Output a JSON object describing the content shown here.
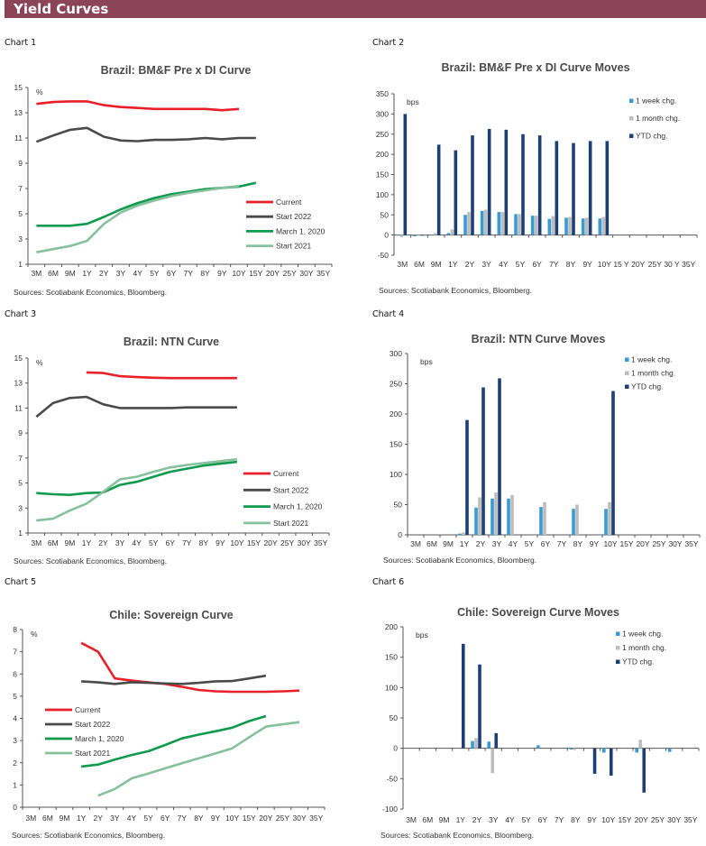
{
  "header": {
    "title": "Yield Curves",
    "color": "#8c4459"
  },
  "colors": {
    "current": "#e8202a",
    "start2022": "#4a4a4a",
    "march2020": "#119a4e",
    "start2021": "#86c09c",
    "week": "#3a9ad4",
    "month": "#bdbdbd",
    "ytd": "#1d3f75"
  },
  "chart_data": [
    {
      "label": "Chart 1",
      "type": "line",
      "title": "Brazil: BM&F Pre x DI Curve",
      "ylabel": "%",
      "sources": "Sources: Scotiabank Economics, Bloomberg.",
      "ylim": [
        1,
        15
      ],
      "yticks": [
        "1",
        "3",
        "5",
        "7",
        "9",
        "11",
        "13",
        "15"
      ],
      "categories": [
        "3M",
        "6M",
        "9M",
        "1Y",
        "2Y",
        "3Y",
        "4Y",
        "5Y",
        "6Y",
        "7Y",
        "8Y",
        "9Y",
        "10Y",
        "15Y",
        "20Y",
        "25Y",
        "30Y",
        "35Y"
      ],
      "legend": "right",
      "series": [
        {
          "name": "Current",
          "color": "#e8202a",
          "values": [
            13.7,
            13.85,
            13.9,
            13.9,
            13.6,
            13.45,
            13.38,
            13.3,
            13.3,
            13.3,
            13.3,
            13.2,
            13.3,
            null,
            null,
            null,
            null,
            null
          ]
        },
        {
          "name": "Start 2022",
          "color": "#4a4a4a",
          "values": [
            10.7,
            11.2,
            11.65,
            11.8,
            11.1,
            10.8,
            10.75,
            10.85,
            10.85,
            10.9,
            11.0,
            10.9,
            11.0,
            11.0,
            null,
            null,
            null,
            null
          ]
        },
        {
          "name": "March 1, 2020",
          "color": "#119a4e",
          "values": [
            4.05,
            4.05,
            4.05,
            4.2,
            4.75,
            5.35,
            5.85,
            6.25,
            6.55,
            6.75,
            6.95,
            7.05,
            7.15,
            7.45,
            null,
            null,
            null,
            null
          ]
        },
        {
          "name": "Start 2021",
          "color": "#86c09c",
          "values": [
            1.95,
            2.2,
            2.45,
            2.85,
            4.2,
            5.1,
            5.65,
            6.05,
            6.4,
            6.65,
            6.85,
            7.05,
            7.2,
            null,
            null,
            null,
            null,
            null
          ]
        }
      ]
    },
    {
      "label": "Chart 2",
      "type": "bar",
      "title": "Brazil: BM&F Pre x DI Curve Moves",
      "ylabel": "bps",
      "sources": "Sources: Scotiabank Economics, Bloomberg.",
      "ylim": [
        -50,
        350
      ],
      "yticks": [
        "-50",
        "0",
        "50",
        "100",
        "150",
        "200",
        "250",
        "300",
        "350"
      ],
      "categories": [
        "3M",
        "6M",
        "9M",
        "1Y",
        "2Y",
        "3Y",
        "4Y",
        "5Y",
        "6Y",
        "7Y",
        "8Y",
        "9Y",
        "10Y",
        "15 Y",
        "20Y",
        "25Y",
        "30 Y",
        "35Y"
      ],
      "legend": "top-right",
      "series": [
        {
          "name": "1 week chg.",
          "color": "#3a9ad4",
          "values": [
            0,
            -3,
            0,
            5,
            50,
            60,
            57,
            52,
            48,
            40,
            43,
            41,
            41,
            null,
            null,
            null,
            null,
            null
          ]
        },
        {
          "name": "1 month chg.",
          "color": "#bdbdbd",
          "values": [
            -5,
            -2,
            5,
            14,
            57,
            63,
            57,
            52,
            48,
            47,
            45,
            43,
            45,
            null,
            null,
            null,
            null,
            null
          ]
        },
        {
          "name": "YTD chg.",
          "color": "#1d3f75",
          "values": [
            300,
            0,
            224,
            210,
            247,
            263,
            261,
            250,
            247,
            233,
            228,
            233,
            233,
            null,
            null,
            null,
            null,
            null
          ]
        }
      ]
    },
    {
      "label": "Chart 3",
      "type": "line",
      "title": "Brazil: NTN Curve",
      "ylabel": "%",
      "sources": "Sources: Scotiabank Economics, Bloomberg.",
      "ylim": [
        1,
        15
      ],
      "yticks": [
        "1",
        "3",
        "5",
        "7",
        "9",
        "11",
        "13",
        "15"
      ],
      "categories": [
        "3M",
        "6M",
        "9M",
        "1Y",
        "2Y",
        "3Y",
        "4Y",
        "5Y",
        "6Y",
        "7Y",
        "8Y",
        "9Y",
        "10Y",
        "15Y",
        "20Y",
        "25Y",
        "30Y",
        "35Y"
      ],
      "legend": "right",
      "series": [
        {
          "name": "Current",
          "color": "#e8202a",
          "values": [
            null,
            null,
            null,
            13.85,
            13.8,
            13.55,
            13.48,
            13.43,
            13.4,
            13.4,
            13.4,
            13.4,
            13.4,
            null,
            null,
            null,
            null,
            null
          ]
        },
        {
          "name": "Start 2022",
          "color": "#4a4a4a",
          "values": [
            10.3,
            11.4,
            11.8,
            11.9,
            11.3,
            11.0,
            11.0,
            11.0,
            11.0,
            11.05,
            11.05,
            11.05,
            11.05,
            null,
            null,
            null,
            null,
            null
          ]
        },
        {
          "name": "March 1, 2020",
          "color": "#119a4e",
          "values": [
            4.2,
            4.1,
            4.05,
            4.2,
            4.25,
            4.85,
            5.1,
            5.5,
            5.9,
            6.15,
            6.4,
            6.55,
            6.7,
            null,
            null,
            null,
            null,
            null
          ]
        },
        {
          "name": "Start 2021",
          "color": "#86c09c",
          "values": [
            2.0,
            2.15,
            2.8,
            3.35,
            4.3,
            5.3,
            5.5,
            5.9,
            6.25,
            6.45,
            6.6,
            6.75,
            6.9,
            null,
            null,
            null,
            null,
            null
          ]
        }
      ]
    },
    {
      "label": "Chart 4",
      "type": "bar",
      "title": "Brazil: NTN Curve Moves",
      "ylabel": "bps",
      "sources": "Sources: Scotiabank Economics, Bloomberg.",
      "ylim": [
        0,
        300
      ],
      "yticks": [
        "0",
        "50",
        "100",
        "150",
        "200",
        "250",
        "300"
      ],
      "categories": [
        "3M",
        "6M",
        "9M",
        "1Y",
        "2Y",
        "3Y",
        "4Y",
        "5Y",
        "6Y",
        "7Y",
        "8Y",
        "9Y",
        "10Y",
        "15Y",
        "20Y",
        "25Y",
        "30Y",
        "35Y"
      ],
      "legend": "top-right",
      "series": [
        {
          "name": "1 week chg.",
          "color": "#3a9ad4",
          "values": [
            null,
            null,
            null,
            2,
            45,
            60,
            60,
            null,
            46,
            null,
            43,
            null,
            43,
            null,
            null,
            null,
            null,
            null
          ]
        },
        {
          "name": "1 month chg.",
          "color": "#bdbdbd",
          "values": [
            null,
            null,
            null,
            4,
            62,
            70,
            66,
            null,
            54,
            null,
            50,
            null,
            54,
            null,
            null,
            null,
            null,
            null
          ]
        },
        {
          "name": "YTD chg.",
          "color": "#1d3f75",
          "values": [
            null,
            null,
            null,
            190,
            244,
            259,
            null,
            null,
            null,
            null,
            null,
            null,
            238,
            null,
            null,
            null,
            null,
            null
          ]
        }
      ]
    },
    {
      "label": "Chart 5",
      "type": "line",
      "title": "Chile:  Sovereign Curve",
      "ylabel": "%",
      "sources": "Sources: Scotiabank Economics, Bloomberg.",
      "ylim": [
        0,
        8
      ],
      "yticks": [
        "0",
        "1",
        "2",
        "3",
        "4",
        "5",
        "6",
        "7",
        "8"
      ],
      "categories": [
        "3M",
        "6M",
        "9M",
        "1Y",
        "2Y",
        "3Y",
        "4Y",
        "5Y",
        "6Y",
        "7Y",
        "8Y",
        "9Y",
        "10Y",
        "15Y",
        "20Y",
        "25Y",
        "30Y",
        "35Y"
      ],
      "legend": "left",
      "series": [
        {
          "name": "Current",
          "color": "#e8202a",
          "values": [
            null,
            null,
            null,
            7.4,
            7.0,
            5.8,
            5.7,
            5.62,
            5.55,
            5.42,
            5.28,
            5.22,
            5.2,
            5.2,
            5.2,
            5.22,
            5.25,
            null
          ]
        },
        {
          "name": "Start 2022",
          "color": "#4a4a4a",
          "values": [
            null,
            null,
            null,
            5.67,
            5.62,
            5.55,
            5.63,
            5.6,
            5.57,
            5.55,
            5.6,
            5.67,
            5.68,
            5.8,
            5.92,
            null,
            null,
            null
          ]
        },
        {
          "name": "March 1, 2020",
          "color": "#119a4e",
          "values": [
            null,
            null,
            null,
            1.83,
            1.92,
            2.15,
            2.35,
            2.52,
            2.8,
            3.1,
            3.27,
            3.42,
            3.58,
            3.88,
            4.1,
            null,
            null,
            null
          ]
        },
        {
          "name": "Start 2021",
          "color": "#86c09c",
          "values": [
            null,
            null,
            null,
            null,
            0.52,
            0.82,
            1.3,
            1.52,
            1.75,
            1.98,
            2.2,
            2.42,
            2.65,
            3.15,
            3.63,
            3.73,
            3.83,
            null
          ]
        }
      ]
    },
    {
      "label": "Chart 6",
      "type": "bar",
      "title": "Chile:  Sovereign Curve Moves",
      "ylabel": "bps",
      "sources": "Sources: Scotiabank Economics, Bloomberg.",
      "ylim": [
        -100,
        200
      ],
      "yticks": [
        "-100",
        "-50",
        "0",
        "50",
        "100",
        "150",
        "200"
      ],
      "categories": [
        "3M",
        "6M",
        "9M",
        "1Y",
        "2Y",
        "3Y",
        "4Y",
        "5Y",
        "6Y",
        "7Y",
        "8Y",
        "9Y",
        "10Y",
        "15Y",
        "20Y",
        "25Y",
        "30Y",
        "35Y"
      ],
      "legend": "top-right",
      "series": [
        {
          "name": "1 week chg.",
          "color": "#3a9ad4",
          "values": [
            null,
            null,
            null,
            null,
            12,
            11,
            null,
            null,
            5,
            null,
            -2,
            null,
            -7,
            null,
            -7,
            null,
            -6,
            null
          ]
        },
        {
          "name": "1 month chg.",
          "color": "#bdbdbd",
          "values": [
            null,
            null,
            null,
            null,
            17,
            -41,
            null,
            null,
            null,
            null,
            -3,
            null,
            null,
            null,
            14,
            null,
            null,
            null
          ]
        },
        {
          "name": "YTD chg.",
          "color": "#1d3f75",
          "values": [
            null,
            null,
            null,
            172,
            138,
            25,
            null,
            null,
            null,
            null,
            null,
            -42,
            -45,
            null,
            -73,
            null,
            null,
            null
          ]
        }
      ]
    }
  ]
}
